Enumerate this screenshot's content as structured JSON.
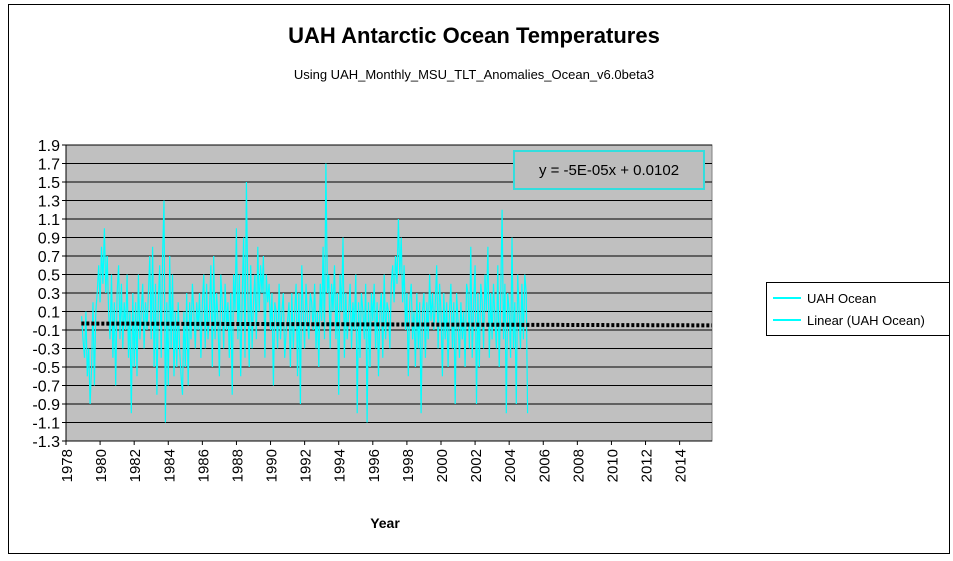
{
  "chart_data": {
    "type": "line",
    "title": "UAH Antarctic Ocean Temperatures",
    "subtitle": "Using UAH_Monthly_MSU_TLT_Anomalies_Ocean_v6.0beta3",
    "xlabel": "Year",
    "ylabel": "",
    "xlim": [
      1978,
      2015.9
    ],
    "ylim": [
      -1.3,
      1.9
    ],
    "x_ticks": [
      "1978",
      "1980",
      "1982",
      "1984",
      "1986",
      "1988",
      "1990",
      "1992",
      "1994",
      "1996",
      "1998",
      "2000",
      "2002",
      "2004",
      "2006",
      "2008",
      "2010",
      "2012",
      "2014"
    ],
    "y_ticks": [
      "1.9",
      "1.7",
      "1.5",
      "1.3",
      "1.1",
      "0.9",
      "0.7",
      "0.5",
      "0.3",
      "0.1",
      "-0.1",
      "-0.3",
      "-0.5",
      "-0.7",
      "-0.9",
      "-1.1",
      "-1.3"
    ],
    "grid": true,
    "legend_position": "right",
    "colors": {
      "plot_background": "#c0c0c0",
      "series": "#00ffff",
      "trend": "#000000"
    },
    "trendline_equation": "y = -5E-05x + 0.0102",
    "series": [
      {
        "name": "UAH Ocean",
        "x_start": "1978-12",
        "step": "month",
        "values": [
          0.05,
          -0.2,
          -0.4,
          0.1,
          -0.6,
          -0.3,
          -0.9,
          -0.5,
          0.2,
          -0.7,
          0.1,
          0.3,
          0.6,
          0.2,
          0.8,
          0.4,
          1.0,
          0.3,
          0.7,
          0.1,
          -0.2,
          0.5,
          -0.4,
          0.2,
          -0.7,
          0.3,
          0.6,
          -0.2,
          0.4,
          -0.3,
          0.2,
          -0.1,
          0.5,
          -0.4,
          0.1,
          -1.0,
          0.3,
          -0.5,
          0.2,
          -0.6,
          0.5,
          -0.2,
          0.1,
          0.4,
          -0.3,
          0.2,
          -0.1,
          0.3,
          0.7,
          -0.2,
          0.8,
          -0.5,
          0.4,
          -0.8,
          0.2,
          0.6,
          -0.4,
          0.7,
          1.3,
          -1.1,
          0.2,
          -0.7,
          0.7,
          -0.3,
          0.5,
          -0.6,
          0.1,
          -0.5,
          0.2,
          -0.3,
          -0.6,
          -0.8,
          0.1,
          -0.5,
          0.3,
          -0.7,
          0.2,
          -0.2,
          0.4,
          0.1,
          -0.3,
          0.2,
          -0.1,
          0.3,
          -0.4,
          0.2,
          0.5,
          -0.3,
          0.4,
          -0.2,
          0.1,
          0.6,
          -0.5,
          0.7,
          -0.2,
          0.3,
          0.0,
          -0.6,
          0.5,
          0.2,
          -0.3,
          0.4,
          -0.1,
          0.2,
          -0.4,
          0.3,
          -0.8,
          0.5,
          0.1,
          1.0,
          -0.2,
          0.5,
          -0.6,
          0.2,
          0.9,
          -0.4,
          1.5,
          0.3,
          -0.5,
          0.6,
          -0.3,
          0.2,
          0.5,
          -0.2,
          0.8,
          0.1,
          0.6,
          0.3,
          0.7,
          -0.4,
          0.5,
          0.2,
          0.4,
          -0.1,
          0.3,
          -0.7,
          0.2,
          0.1,
          -0.3,
          0.4,
          -0.2,
          0.1,
          0.3,
          -0.4,
          -0.1,
          0.0,
          0.2,
          -0.5,
          0.3,
          -0.3,
          0.1,
          0.4,
          -0.6,
          0.3,
          -0.9,
          0.6,
          0.1,
          -0.3,
          0.4,
          0.0,
          -0.2,
          0.3,
          0.2,
          -0.1,
          0.4,
          -0.3,
          0.1,
          -0.5,
          0.4,
          0.0,
          0.8,
          -0.2,
          1.7,
          0.3,
          0.5,
          -0.3,
          0.4,
          0.1,
          0.6,
          -0.2,
          0.3,
          -0.8,
          0.5,
          0.1,
          0.9,
          -0.4,
          0.3,
          -0.2,
          0.1,
          0.4,
          -0.3,
          0.2,
          -0.1,
          0.5,
          -1.0,
          0.2,
          -0.4,
          0.3,
          0.1,
          -0.2,
          0.4,
          -1.1,
          0.2,
          -0.5,
          0.3,
          0.0,
          0.4,
          -0.3,
          0.2,
          -0.6,
          0.1,
          0.3,
          -0.4,
          0.5,
          -0.2,
          0.2,
          0.1,
          -0.3,
          0.4,
          0.6,
          0.2,
          0.7,
          0.4,
          1.1,
          0.5,
          0.9,
          0.2,
          0.6,
          -0.1,
          0.3,
          -0.6,
          0.2,
          0.4,
          -0.2,
          0.1,
          -0.5,
          0.3,
          -0.3,
          0.2,
          -1.0,
          0.1,
          0.3,
          -0.4,
          0.2,
          -0.2,
          0.5,
          0.0,
          0.3,
          -0.1,
          0.2,
          0.6,
          -0.3,
          0.4,
          0.1,
          -0.6,
          0.3,
          -0.2,
          0.2,
          -0.5,
          0.1,
          0.4,
          -0.3,
          0.2,
          -0.9,
          0.3,
          0.0,
          -0.4,
          0.2,
          -0.2,
          0.1,
          -0.5,
          0.4,
          0.3,
          -0.3,
          0.8,
          -0.4,
          0.2,
          0.6,
          -0.9,
          0.3,
          -0.5,
          0.4,
          0.2,
          -0.3,
          0.5,
          0.1,
          0.8,
          -0.4,
          0.3,
          -0.2,
          0.4,
          0.0,
          -0.3,
          0.6,
          -0.5,
          0.2,
          1.2,
          -0.2,
          0.4,
          -1.0,
          0.3,
          0.1,
          -0.4,
          0.9,
          -0.3,
          0.2,
          -0.9,
          0.5,
          0.1,
          -0.3,
          0.4,
          -0.2,
          0.5,
          0.3,
          -1.0
        ]
      },
      {
        "name": "Linear (UAH Ocean)",
        "x": [
          1978.9,
          2015.9
        ],
        "values": [
          -0.03,
          -0.05
        ]
      }
    ]
  }
}
